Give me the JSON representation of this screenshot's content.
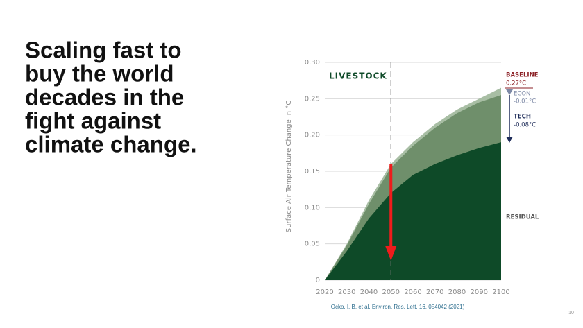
{
  "slide": {
    "title": [
      "Scaling fast to",
      "buy the world",
      "decades in the",
      "fight against",
      "climate change."
    ],
    "citation": "Ocko, I. B. et al. Environ. Res. Lett. 16, 054042 (2021)",
    "page": "10"
  },
  "chart_data": {
    "type": "area",
    "title": "LIVESTOCK",
    "y_label": "Surface Air Temperature Change in °C",
    "x": [
      2020,
      2030,
      2040,
      2050,
      2060,
      2070,
      2080,
      2090,
      2100
    ],
    "xlim": [
      2020,
      2100
    ],
    "xticks": [
      2020,
      2030,
      2040,
      2050,
      2060,
      2070,
      2080,
      2090,
      2100
    ],
    "ylim": [
      0,
      0.3
    ],
    "yticks": [
      0,
      0.05,
      {
        "value": 0.1,
        "label": "0.10"
      },
      0.15,
      {
        "value": 0.2,
        "label": "0.20"
      },
      0.25,
      {
        "value": 0.3,
        "label": "0.30"
      }
    ],
    "grid": true,
    "vline": 2050,
    "series": [
      {
        "name": "BASELINE",
        "color": "#a8bea4",
        "label_color": "#8b1f24",
        "values": [
          0,
          0.05,
          0.11,
          0.16,
          0.19,
          0.215,
          0.235,
          0.25,
          0.265
        ]
      },
      {
        "name": "ECON",
        "color": "#6f8f6b",
        "label_color": "#7d89a6",
        "values": [
          0,
          0.048,
          0.105,
          0.155,
          0.185,
          0.21,
          0.23,
          0.245,
          0.255
        ]
      },
      {
        "name": "RESIDUAL",
        "color": "#0e4a28",
        "label_color": "#555555",
        "values": [
          0,
          0.04,
          0.085,
          0.12,
          0.145,
          0.16,
          0.172,
          0.182,
          0.19
        ]
      }
    ],
    "change_labels": {
      "baseline": "0.27°C",
      "econ": "-0.01°C",
      "tech_name": "TECH",
      "tech": "-0.08°C"
    }
  }
}
